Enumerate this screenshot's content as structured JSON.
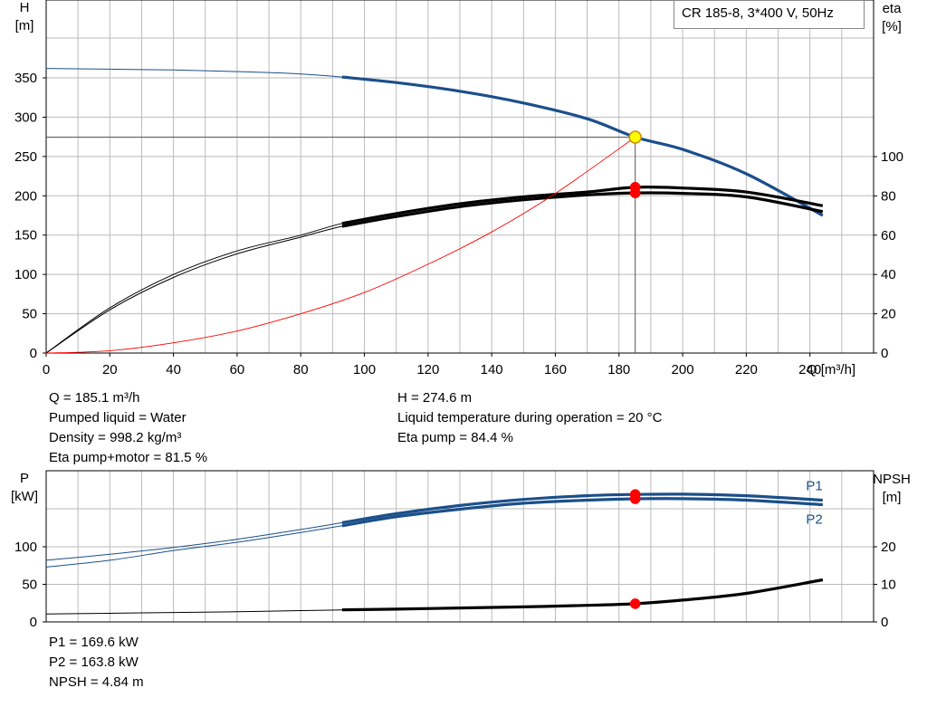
{
  "pump_label": "CR 185-8, 3*400 V, 50Hz",
  "top_info": {
    "left": [
      "Q = 185.1 m³/h",
      "Pumped liquid = Water",
      "Density = 998.2 kg/m³",
      "Eta pump+motor = 81.5 %"
    ],
    "right": [
      "H = 274.6 m",
      "Liquid temperature during operation = 20 °C",
      "Eta pump = 84.4 %"
    ]
  },
  "bottom_info": [
    "P1 = 169.6 kW",
    "P2 = 163.8 kW",
    "NPSH = 4.84 m"
  ],
  "colors": {
    "head": "#1b4f8a",
    "eta": "#000000",
    "system": "#ff0000",
    "power": "#1b4f8a",
    "npsh": "#000000",
    "marker": "#ff0000",
    "duty": "#ffff00"
  },
  "chart_data": [
    {
      "type": "line",
      "title": "",
      "xlabel": "Q [m³/h]",
      "xlim": [
        0,
        260
      ],
      "xticks": [
        0,
        20,
        40,
        60,
        80,
        100,
        120,
        140,
        160,
        180,
        200,
        220,
        240
      ],
      "y_left": {
        "label_line1": "H",
        "label_line2": "[m]",
        "lim": [
          0,
          350
        ],
        "ticks": [
          0,
          50,
          100,
          150,
          200,
          250,
          300,
          350
        ]
      },
      "y_right": {
        "label_line1": "eta",
        "label_line2": "[%]",
        "lim": [
          0,
          100
        ],
        "ticks": [
          0,
          20,
          40,
          60,
          80,
          100
        ]
      },
      "series": [
        {
          "axis": "left",
          "kind": "head",
          "x": [
            0,
            20,
            40,
            60,
            80,
            93,
            110,
            130,
            150,
            170,
            185.1,
            200,
            220,
            244
          ],
          "y": [
            362,
            361,
            360,
            358,
            355,
            351,
            344,
            333,
            318,
            298,
            274.6,
            259,
            228,
            175
          ]
        },
        {
          "axis": "right",
          "kind": "eta",
          "x": [
            0,
            20,
            40,
            60,
            80,
            93,
            110,
            130,
            150,
            170,
            185.1,
            200,
            220,
            244
          ],
          "y": [
            0,
            23,
            40,
            52,
            60,
            66,
            71,
            76,
            79.5,
            82,
            84.4,
            84,
            82,
            75
          ]
        },
        {
          "axis": "right",
          "kind": "eta",
          "x": [
            0,
            20,
            40,
            60,
            80,
            93,
            110,
            130,
            150,
            170,
            185.1,
            200,
            220,
            244
          ],
          "y": [
            0,
            22,
            38.5,
            50.5,
            59,
            64.5,
            69.5,
            74.5,
            78,
            80.5,
            81.5,
            81.3,
            79.5,
            72
          ]
        },
        {
          "axis": "left",
          "kind": "system",
          "x": [
            0,
            20,
            40,
            60,
            80,
            100,
            120,
            140,
            160,
            185.1
          ],
          "y": [
            0,
            3,
            13,
            28,
            50,
            77,
            113,
            154,
            203,
            274.6
          ]
        }
      ],
      "markers": [
        {
          "axis": "left",
          "x": 185.1,
          "y": 274.6,
          "kind": "duty"
        },
        {
          "axis": "right",
          "x": 185.1,
          "y": 84.4,
          "kind": "point"
        },
        {
          "axis": "right",
          "x": 185.1,
          "y": 81.5,
          "kind": "point"
        }
      ]
    },
    {
      "type": "line",
      "title": "",
      "xlim": [
        0,
        260
      ],
      "y_left": {
        "label_line1": "P",
        "label_line2": "[kW]",
        "lim": [
          0,
          175
        ],
        "ticks": [
          0,
          50,
          100
        ]
      },
      "y_right": {
        "label_line1": "NPSH",
        "label_line2": "[m]",
        "lim": [
          0,
          35
        ],
        "ticks": [
          0,
          10,
          20
        ]
      },
      "series": [
        {
          "axis": "left",
          "kind": "power",
          "name": "P1",
          "x": [
            0,
            20,
            40,
            60,
            80,
            93,
            110,
            130,
            150,
            170,
            185.1,
            200,
            220,
            244
          ],
          "y": [
            82,
            90,
            99,
            110,
            123,
            132,
            144,
            155,
            163,
            168,
            169.6,
            170,
            168,
            162
          ]
        },
        {
          "axis": "left",
          "kind": "power",
          "name": "P2",
          "x": [
            0,
            20,
            40,
            60,
            80,
            93,
            110,
            130,
            150,
            170,
            185.1,
            200,
            220,
            244
          ],
          "y": [
            73,
            82,
            95,
            106,
            119,
            128,
            140,
            150,
            158,
            162,
            163.8,
            164,
            162,
            156
          ]
        },
        {
          "axis": "right",
          "kind": "npsh",
          "x": [
            0,
            20,
            40,
            60,
            80,
            93,
            110,
            130,
            150,
            170,
            185.1,
            200,
            220,
            244
          ],
          "y": [
            2.1,
            2.3,
            2.5,
            2.7,
            3.0,
            3.2,
            3.4,
            3.7,
            4.0,
            4.4,
            4.84,
            5.8,
            7.6,
            11.2
          ]
        }
      ],
      "markers": [
        {
          "axis": "left",
          "x": 185.1,
          "y": 169.6,
          "kind": "point"
        },
        {
          "axis": "left",
          "x": 185.1,
          "y": 163.8,
          "kind": "point"
        },
        {
          "axis": "right",
          "x": 185.1,
          "y": 4.84,
          "kind": "point"
        }
      ]
    }
  ]
}
